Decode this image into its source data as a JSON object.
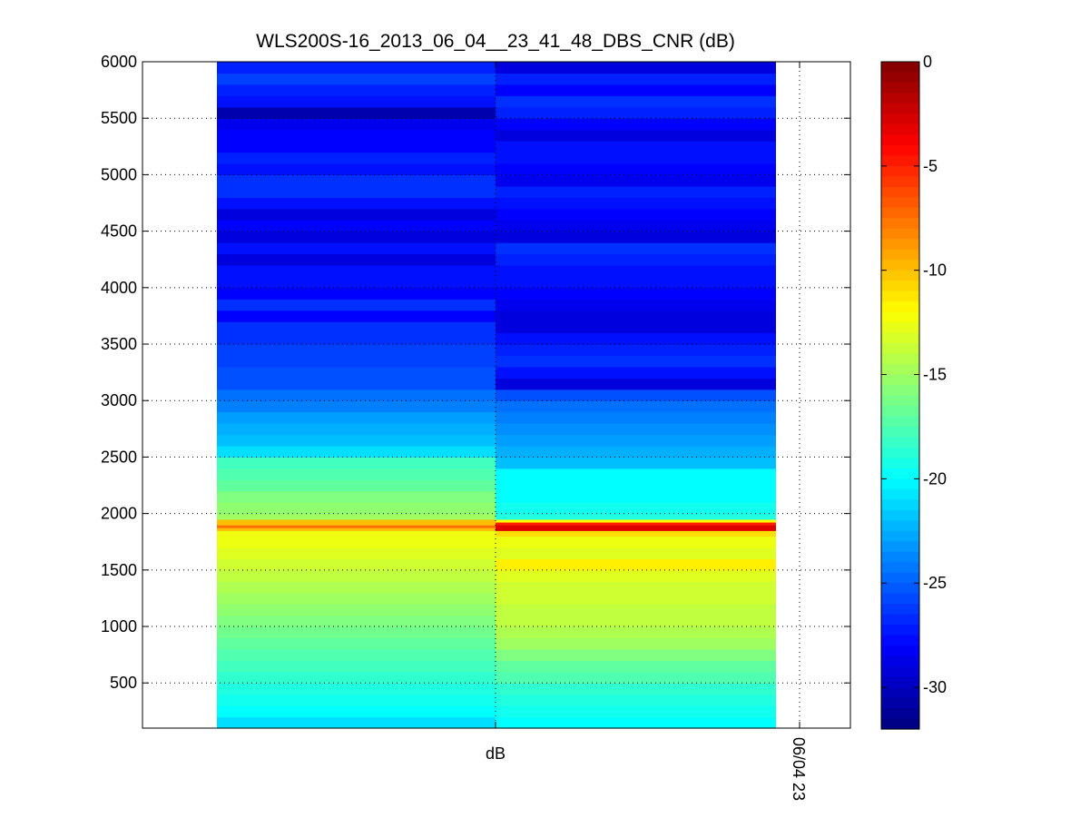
{
  "chart_data": {
    "type": "heatmap",
    "title": "WLS200S-16_2013_06_04__23_41_48_DBS_CNR (dB)",
    "xlabel": "",
    "ylabel": "",
    "x_tick_labels": [
      "dB",
      "06/04 23"
    ],
    "yticks": [
      500,
      1000,
      1500,
      2000,
      2500,
      3000,
      3500,
      4000,
      4500,
      5000,
      5500,
      6000
    ],
    "ylim": [
      100,
      6000
    ],
    "grid": true,
    "colorbar": {
      "ticks": [
        0,
        -5,
        -10,
        -15,
        -20,
        -25,
        -30
      ],
      "range": [
        -32,
        0
      ],
      "colormap": "jet"
    },
    "columns": [
      {
        "range_bins": [
          [
            100,
            200,
            -21
          ],
          [
            200,
            300,
            -20
          ],
          [
            300,
            400,
            -19.5
          ],
          [
            400,
            500,
            -19
          ],
          [
            500,
            600,
            -18.5
          ],
          [
            600,
            700,
            -18
          ],
          [
            700,
            800,
            -17.5
          ],
          [
            800,
            900,
            -17
          ],
          [
            900,
            1000,
            -16.5
          ],
          [
            1000,
            1100,
            -16
          ],
          [
            1100,
            1200,
            -15.5
          ],
          [
            1200,
            1300,
            -15
          ],
          [
            1300,
            1400,
            -14.5
          ],
          [
            1400,
            1500,
            -14
          ],
          [
            1500,
            1600,
            -13.5
          ],
          [
            1600,
            1700,
            -13
          ],
          [
            1700,
            1800,
            -12.5
          ],
          [
            1800,
            1850,
            -12.5
          ],
          [
            1850,
            1875,
            -10
          ],
          [
            1875,
            1900,
            -7.5
          ],
          [
            1900,
            1950,
            -10
          ],
          [
            1950,
            2000,
            -15
          ],
          [
            2000,
            2100,
            -15.5
          ],
          [
            2100,
            2200,
            -16
          ],
          [
            2200,
            2300,
            -17
          ],
          [
            2300,
            2400,
            -17.5
          ],
          [
            2400,
            2500,
            -18
          ],
          [
            2500,
            2600,
            -21
          ],
          [
            2600,
            2700,
            -22
          ],
          [
            2700,
            2800,
            -22.5
          ],
          [
            2800,
            2900,
            -23
          ],
          [
            2900,
            3000,
            -24
          ],
          [
            3000,
            3100,
            -24.5
          ],
          [
            3100,
            3200,
            -25.5
          ],
          [
            3200,
            3300,
            -25.5
          ],
          [
            3300,
            3400,
            -26
          ],
          [
            3400,
            3500,
            -26
          ],
          [
            3500,
            3600,
            -26.5
          ],
          [
            3600,
            3700,
            -26.5
          ],
          [
            3700,
            3800,
            -28
          ],
          [
            3800,
            3900,
            -26.5
          ],
          [
            3900,
            4000,
            -28
          ],
          [
            4000,
            4100,
            -27.5
          ],
          [
            4100,
            4200,
            -27.5
          ],
          [
            4200,
            4300,
            -29
          ],
          [
            4300,
            4400,
            -27.5
          ],
          [
            4400,
            4500,
            -29
          ],
          [
            4500,
            4600,
            -28
          ],
          [
            4600,
            4700,
            -29
          ],
          [
            4700,
            4800,
            -27.5
          ],
          [
            4800,
            4900,
            -26.5
          ],
          [
            4900,
            5000,
            -26.5
          ],
          [
            5000,
            5100,
            -27.5
          ],
          [
            5100,
            5200,
            -27
          ],
          [
            5200,
            5300,
            -28
          ],
          [
            5300,
            5400,
            -28
          ],
          [
            5400,
            5500,
            -28.5
          ],
          [
            5500,
            5600,
            -30.5
          ],
          [
            5600,
            5700,
            -27.5
          ],
          [
            5700,
            5800,
            -27
          ],
          [
            5800,
            5900,
            -26
          ],
          [
            5900,
            6000,
            -27
          ]
        ]
      },
      {
        "range_bins": [
          [
            100,
            200,
            -20
          ],
          [
            200,
            300,
            -19.5
          ],
          [
            300,
            400,
            -19
          ],
          [
            400,
            500,
            -18.5
          ],
          [
            500,
            600,
            -17.5
          ],
          [
            600,
            700,
            -17
          ],
          [
            700,
            800,
            -16
          ],
          [
            800,
            900,
            -15
          ],
          [
            900,
            1000,
            -14.5
          ],
          [
            1000,
            1100,
            -14
          ],
          [
            1100,
            1200,
            -14
          ],
          [
            1200,
            1300,
            -13.5
          ],
          [
            1300,
            1400,
            -13.5
          ],
          [
            1400,
            1500,
            -13
          ],
          [
            1500,
            1600,
            -11.5
          ],
          [
            1600,
            1700,
            -13
          ],
          [
            1700,
            1800,
            -12.5
          ],
          [
            1800,
            1850,
            -11
          ],
          [
            1850,
            1900,
            -3
          ],
          [
            1900,
            1925,
            -5
          ],
          [
            1925,
            1950,
            -12
          ],
          [
            1950,
            2000,
            -19
          ],
          [
            2000,
            2100,
            -19.5
          ],
          [
            2100,
            2200,
            -20
          ],
          [
            2200,
            2300,
            -20
          ],
          [
            2300,
            2400,
            -20
          ],
          [
            2400,
            2500,
            -22
          ],
          [
            2500,
            2600,
            -22.5
          ],
          [
            2600,
            2700,
            -23
          ],
          [
            2700,
            2800,
            -23.5
          ],
          [
            2800,
            2900,
            -24
          ],
          [
            2900,
            3000,
            -24.5
          ],
          [
            3000,
            3100,
            -25.5
          ],
          [
            3100,
            3200,
            -29
          ],
          [
            3200,
            3300,
            -27.5
          ],
          [
            3300,
            3400,
            -26.5
          ],
          [
            3400,
            3500,
            -27
          ],
          [
            3500,
            3600,
            -27.5
          ],
          [
            3600,
            3700,
            -29
          ],
          [
            3700,
            3800,
            -29
          ],
          [
            3800,
            3900,
            -28.5
          ],
          [
            3900,
            4000,
            -28
          ],
          [
            4000,
            4100,
            -27.5
          ],
          [
            4100,
            4200,
            -27.5
          ],
          [
            4200,
            4300,
            -27
          ],
          [
            4300,
            4400,
            -26.5
          ],
          [
            4400,
            4500,
            -29
          ],
          [
            4500,
            4600,
            -28.5
          ],
          [
            4600,
            4700,
            -28
          ],
          [
            4700,
            4800,
            -27.5
          ],
          [
            4800,
            4900,
            -27
          ],
          [
            4900,
            5000,
            -28.5
          ],
          [
            5000,
            5100,
            -28
          ],
          [
            5100,
            5200,
            -27.5
          ],
          [
            5200,
            5300,
            -27.5
          ],
          [
            5300,
            5400,
            -29
          ],
          [
            5400,
            5500,
            -28
          ],
          [
            5500,
            5600,
            -27
          ],
          [
            5600,
            5700,
            -26.5
          ],
          [
            5700,
            5800,
            -28
          ],
          [
            5800,
            5900,
            -27
          ],
          [
            5900,
            6000,
            -29
          ]
        ]
      }
    ]
  }
}
